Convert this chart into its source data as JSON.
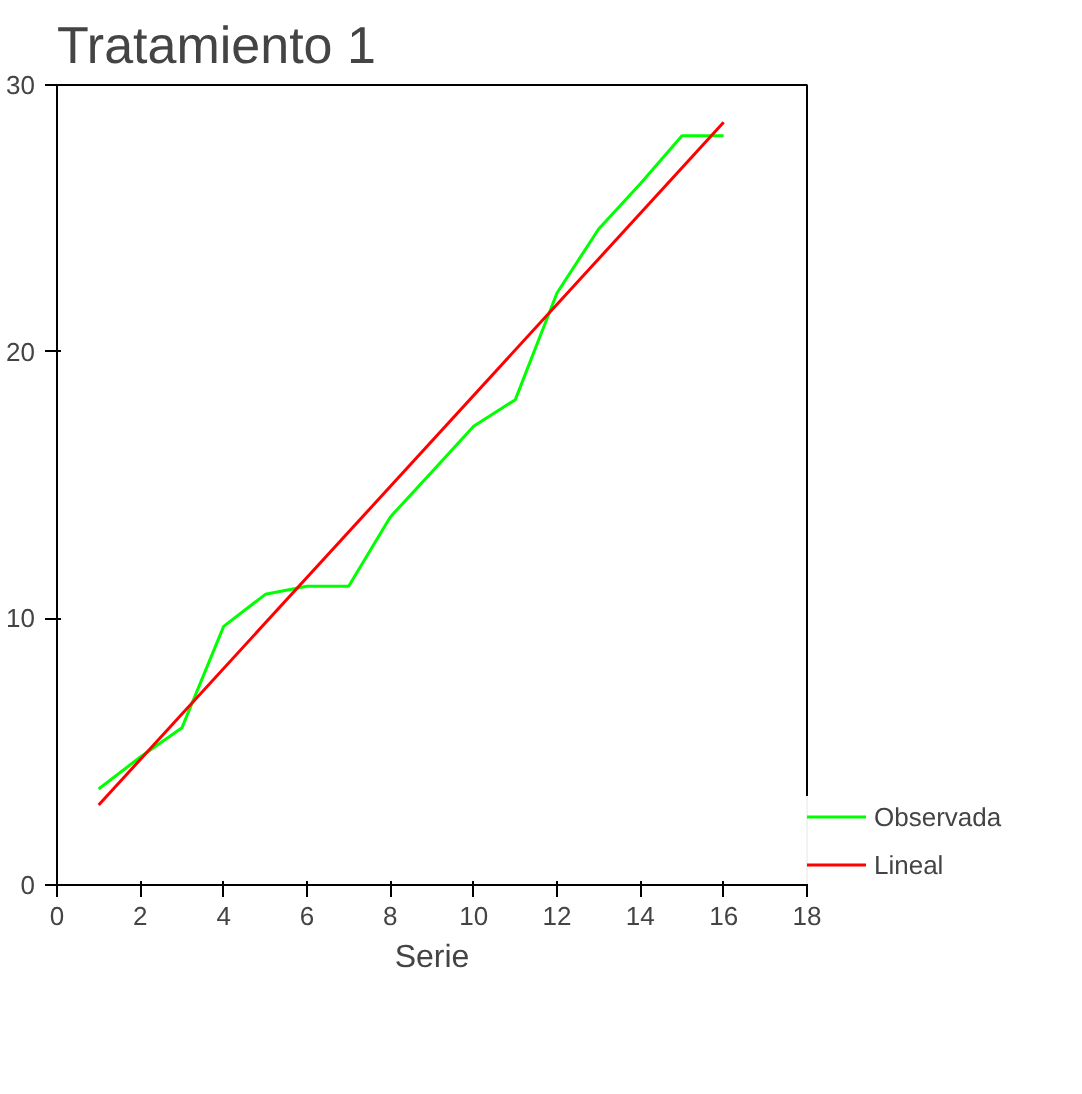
{
  "chart_data": {
    "type": "line",
    "title": "Tratamiento 1",
    "xlabel": "Serie",
    "xlim": [
      0,
      18
    ],
    "ylim": [
      0,
      30
    ],
    "xticks": [
      0,
      2,
      4,
      6,
      8,
      10,
      12,
      14,
      16,
      18
    ],
    "yticks": [
      0,
      10,
      20,
      30
    ],
    "grid": false,
    "legend": "right",
    "series": [
      {
        "name": "Observada",
        "color": "#00ff00",
        "x": [
          1,
          2,
          3,
          4,
          5,
          6,
          7,
          8,
          9,
          10,
          11,
          12,
          13,
          14,
          15,
          16
        ],
        "values": [
          3.6,
          4.8,
          5.9,
          9.7,
          10.9,
          11.2,
          11.2,
          13.8,
          15.5,
          17.2,
          18.2,
          22.2,
          24.6,
          26.3,
          28.1,
          28.1
        ]
      },
      {
        "name": "Lineal",
        "color": "#ff0000",
        "x": [
          1,
          16
        ],
        "values": [
          3.0,
          28.6
        ]
      }
    ]
  }
}
